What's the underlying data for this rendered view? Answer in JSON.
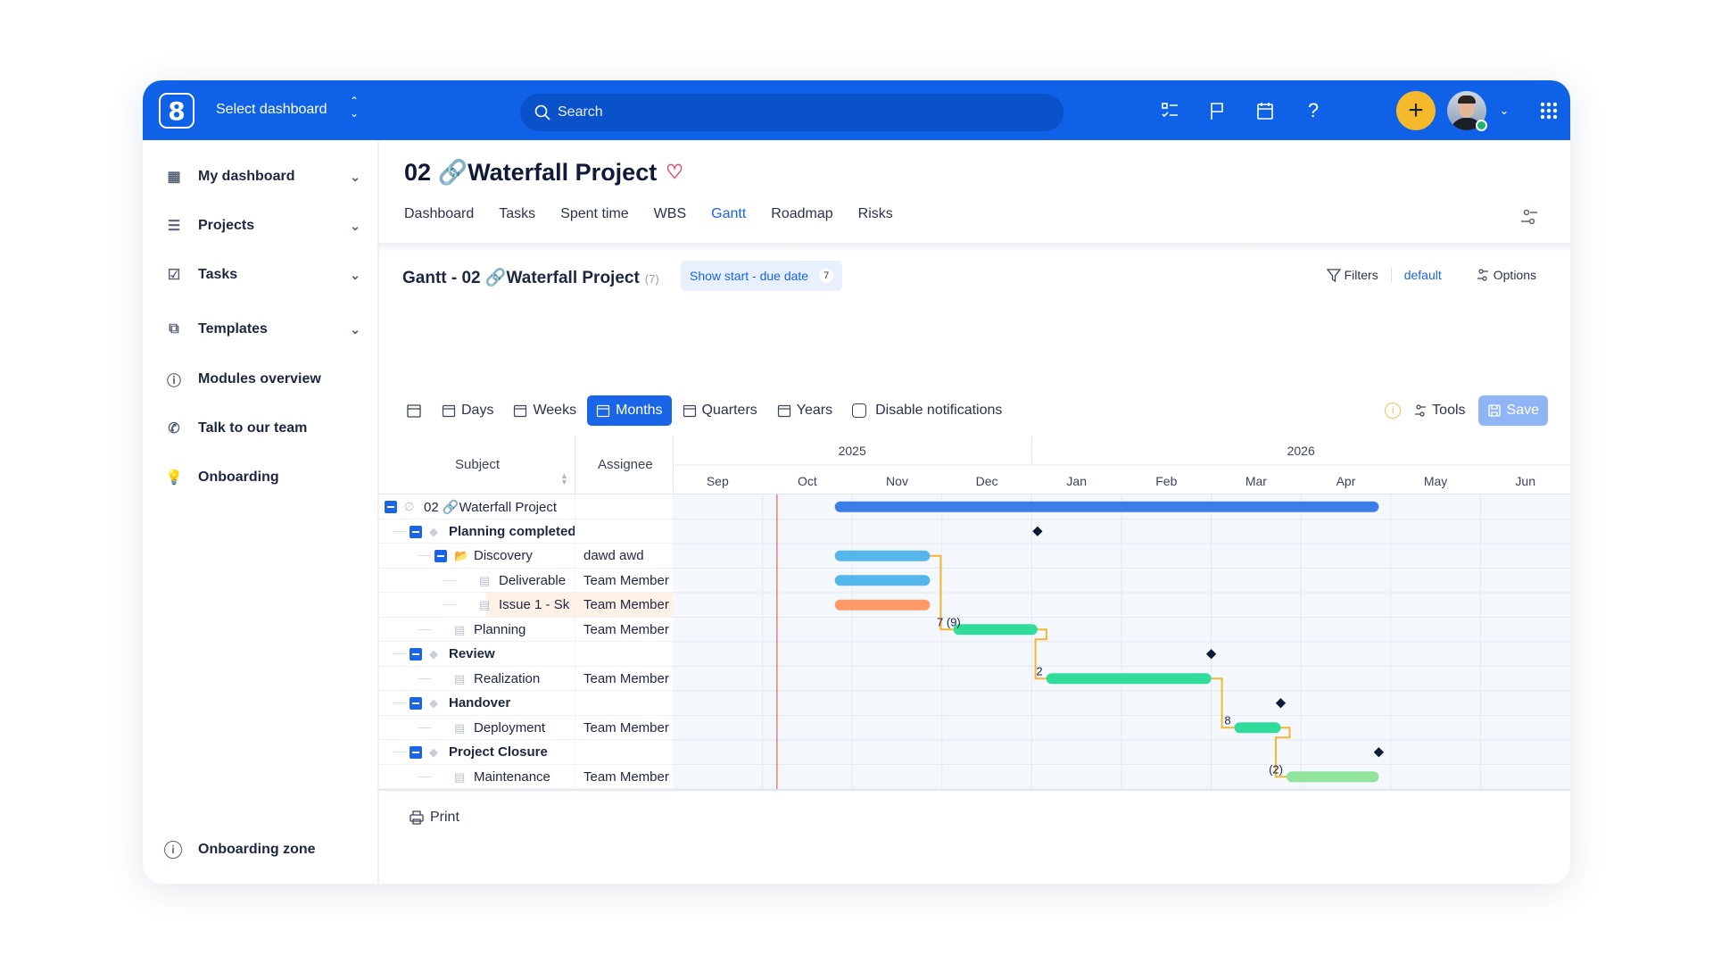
{
  "topbar": {
    "logo": "8",
    "select_dashboard": "Select dashboard",
    "search_placeholder": "Search",
    "icons": [
      "tasks-list-icon",
      "flag-icon",
      "calendar-icon",
      "help-icon",
      "plus-icon",
      "avatar",
      "chevron-down-icon",
      "apps-grid-icon"
    ]
  },
  "sidebar": {
    "items": [
      {
        "label": "My dashboard",
        "icon": "dashboard-icon",
        "expandable": true
      },
      {
        "label": "Projects",
        "icon": "projects-icon",
        "expandable": true
      },
      {
        "label": "Tasks",
        "icon": "tasks-icon",
        "expandable": true
      },
      {
        "label": "Templates",
        "icon": "templates-icon",
        "expandable": true
      },
      {
        "label": "Modules overview",
        "icon": "info-icon",
        "expandable": false
      },
      {
        "label": "Talk to our team",
        "icon": "phone-icon",
        "expandable": false
      },
      {
        "label": "Onboarding",
        "icon": "lightbulb-icon",
        "expandable": false
      }
    ],
    "footer": "Onboarding zone"
  },
  "project": {
    "title": "02 🔗Waterfall Project",
    "favorite": true
  },
  "tabs": [
    {
      "label": "Dashboard"
    },
    {
      "label": "Tasks"
    },
    {
      "label": "Spent time"
    },
    {
      "label": "WBS"
    },
    {
      "label": "Gantt",
      "active": true
    },
    {
      "label": "Roadmap"
    },
    {
      "label": "Risks"
    }
  ],
  "gantt": {
    "title": "Gantt - 02 🔗Waterfall Project",
    "count": "(7)",
    "show_dates": "Show start - due date",
    "show_dates_badge": "7",
    "filters": "Filters",
    "filter_preset": "default",
    "options": "Options",
    "zoom_levels": [
      {
        "label": "Days"
      },
      {
        "label": "Weeks"
      },
      {
        "label": "Months",
        "active": true
      },
      {
        "label": "Quarters"
      },
      {
        "label": "Years"
      }
    ],
    "disable_notifications": "Disable notifications",
    "disable_notifications_checked": false,
    "tools": "Tools",
    "save": "Save",
    "columns": {
      "subject": "Subject",
      "assignee": "Assignee"
    },
    "years": [
      {
        "label": "2025",
        "months": 4
      },
      {
        "label": "2026",
        "months": 6
      }
    ],
    "months": [
      "Sep",
      "Oct",
      "Nov",
      "Dec",
      "Jan",
      "Feb",
      "Mar",
      "Apr",
      "May",
      "Jun"
    ],
    "timeline_start": "2025-09-01",
    "today": "2025-10-06",
    "colors": {
      "project": "#3b7ee8",
      "discovery": "#55b6ec",
      "issue": "#ff9a66",
      "task": "#2fdc9b",
      "task_light": "#8fe39a",
      "milestone": "#0f1a36",
      "dependency": "#f2b632",
      "today": "#f07c7c"
    },
    "rows": [
      {
        "subject": "02 🔗Waterfall Project",
        "assignee": "",
        "level": 0,
        "kind": "project",
        "toggle": true,
        "bar": {
          "start": "2025-10-26",
          "end": "2026-04-27",
          "color": "project"
        }
      },
      {
        "subject": "Planning completed",
        "assignee": "",
        "level": 1,
        "kind": "milestone",
        "toggle": true,
        "bold": true,
        "milestone": "2026-01-03"
      },
      {
        "subject": "Discovery",
        "assignee": "dawd awd",
        "level": 2,
        "kind": "folder",
        "toggle": true,
        "bar": {
          "start": "2025-10-26",
          "end": "2025-11-27",
          "color": "discovery"
        }
      },
      {
        "subject": "Deliverable",
        "assignee": "Team Member",
        "level": 3,
        "kind": "task",
        "bar": {
          "start": "2025-10-26",
          "end": "2025-11-27",
          "color": "discovery"
        }
      },
      {
        "subject": "Issue 1 - Sk",
        "assignee": "Team Member",
        "level": 3,
        "kind": "task",
        "highlight": true,
        "bar": {
          "start": "2025-10-26",
          "end": "2025-11-27",
          "color": "issue"
        }
      },
      {
        "subject": "Planning",
        "assignee": "Team Member",
        "level": 2,
        "kind": "task",
        "bar": {
          "start": "2025-12-05",
          "end": "2026-01-03",
          "color": "task"
        }
      },
      {
        "subject": "Review",
        "assignee": "",
        "level": 1,
        "kind": "milestone",
        "toggle": true,
        "bold": true,
        "milestone": "2026-03-01"
      },
      {
        "subject": "Realization",
        "assignee": "Team Member",
        "level": 2,
        "kind": "task",
        "bar": {
          "start": "2026-01-06",
          "end": "2026-03-01",
          "color": "task"
        }
      },
      {
        "subject": "Handover",
        "assignee": "",
        "level": 1,
        "kind": "milestone",
        "toggle": true,
        "bold": true,
        "milestone": "2026-03-25"
      },
      {
        "subject": "Deployment",
        "assignee": "Team Member",
        "level": 2,
        "kind": "task",
        "bar": {
          "start": "2026-03-09",
          "end": "2026-03-25",
          "color": "task"
        }
      },
      {
        "subject": "Project Closure",
        "assignee": "",
        "level": 1,
        "kind": "milestone",
        "toggle": true,
        "bold": true,
        "milestone": "2026-04-27"
      },
      {
        "subject": "Maintenance",
        "assignee": "Team Member",
        "level": 2,
        "kind": "task",
        "bar": {
          "start": "2026-03-27",
          "end": "2026-04-27",
          "color": "task_light"
        }
      }
    ],
    "dependencies": [
      {
        "from": 2,
        "to": 5,
        "label": "7 (9)"
      },
      {
        "from": 5,
        "to": 7,
        "label": "2"
      },
      {
        "from": 7,
        "to": 9,
        "label": "8"
      },
      {
        "from": 9,
        "to": 11,
        "label": "(2)"
      }
    ],
    "print": "Print"
  }
}
